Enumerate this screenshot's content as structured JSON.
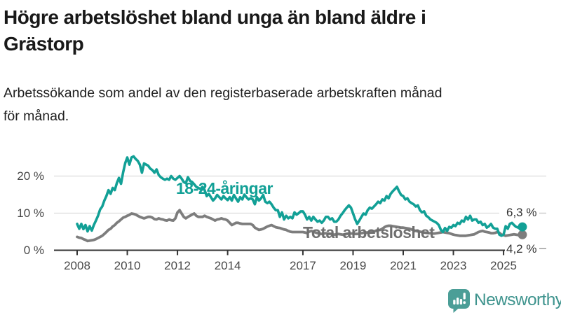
{
  "header": {
    "title": "Högre arbetslöshet bland unga än bland äldre i Grästorp",
    "title_line1": "Högre arbetslöshet bland unga än bland äldre i",
    "title_line2": "Grästorp",
    "subtitle": "Arbetssökande som andel av den registerbaserade arbetskraften månad för månad.",
    "subtitle_line1": "Arbetssökande som andel av den registerbaserade arbetskraften månad",
    "subtitle_line2": "för månad."
  },
  "chart_data": {
    "type": "line",
    "title": "Högre arbetslöshet bland unga än bland äldre i Grästorp",
    "subtitle": "Arbetssökande som andel av den registerbaserade arbetskraften månad för månad.",
    "unit": "%",
    "grid": true,
    "x_start_year": 2008,
    "points_per_year": 12,
    "x_ticks": [
      2008,
      2010,
      2012,
      2014,
      2017,
      2019,
      2021,
      2023,
      2025
    ],
    "y_ticks": [
      {
        "value": 0,
        "label": "0 %"
      },
      {
        "value": 10,
        "label": "10 %"
      },
      {
        "value": 20,
        "label": "20 %"
      }
    ],
    "ylim": [
      0,
      27
    ],
    "series": [
      {
        "name": "18-24-åringar",
        "color": "#12a096",
        "end_value": 6.3,
        "end_label": "6,3 %",
        "values": [
          7.1,
          5.8,
          7.1,
          5.7,
          6.8,
          5.1,
          6.5,
          5.3,
          6.8,
          8.0,
          9.3,
          11.0,
          11.8,
          13.4,
          14.6,
          16.2,
          15.2,
          16.8,
          16.2,
          18.1,
          19.5,
          17.9,
          21.0,
          23.5,
          25.0,
          23.1,
          25.0,
          25.3,
          24.6,
          24.1,
          23.1,
          20.9,
          23.4,
          23.1,
          22.8,
          22.0,
          21.6,
          20.9,
          21.8,
          20.3,
          19.7,
          19.3,
          19.0,
          19.3,
          19.0,
          20.0,
          19.3,
          19.0,
          19.5,
          20.0,
          19.3,
          18.4,
          18.1,
          19.7,
          18.7,
          18.4,
          17.8,
          17.1,
          16.8,
          16.5,
          17.1,
          16.2,
          14.6,
          15.2,
          14.3,
          13.4,
          14.0,
          14.9,
          14.3,
          13.7,
          14.6,
          14.0,
          13.5,
          14.3,
          13.4,
          14.9,
          14.0,
          13.1,
          14.3,
          13.7,
          15.0,
          14.3,
          13.7,
          14.0,
          13.7,
          12.4,
          14.3,
          13.4,
          14.0,
          14.9,
          13.1,
          12.7,
          13.1,
          12.4,
          11.5,
          10.8,
          10.8,
          9.0,
          10.2,
          8.3,
          9.3,
          8.6,
          9.0,
          8.6,
          10.2,
          9.6,
          10.0,
          10.5,
          10.5,
          9.6,
          8.3,
          9.0,
          8.0,
          9.0,
          8.3,
          7.7,
          8.0,
          7.4,
          8.0,
          9.0,
          9.0,
          8.3,
          8.6,
          7.7,
          7.7,
          8.3,
          9.3,
          10.0,
          10.8,
          11.5,
          12.1,
          11.5,
          9.9,
          8.3,
          7.1,
          8.0,
          9.0,
          9.9,
          9.6,
          10.8,
          11.5,
          11.2,
          11.8,
          12.4,
          13.1,
          12.7,
          13.7,
          13.4,
          14.6,
          14.0,
          15.2,
          15.9,
          16.5,
          17.1,
          15.9,
          14.9,
          14.6,
          13.7,
          14.0,
          13.1,
          12.7,
          12.4,
          11.8,
          12.1,
          10.8,
          10.2,
          10.5,
          9.3,
          8.9,
          8.3,
          8.0,
          7.7,
          7.4,
          6.8,
          5.5,
          4.9,
          6.0,
          5.2,
          6.3,
          6.1,
          6.8,
          6.5,
          7.4,
          7.1,
          8.0,
          7.7,
          9.0,
          8.3,
          9.3,
          8.0,
          8.3,
          8.3,
          7.4,
          7.7,
          6.8,
          7.1,
          6.1,
          6.5,
          7.1,
          6.1,
          5.8,
          5.8,
          4.2,
          3.9,
          4.2,
          6.5,
          5.8,
          7.1,
          7.4,
          6.8,
          6.3,
          6.1,
          5.8,
          6.3
        ]
      },
      {
        "name": "Total arbetslöshet",
        "color": "#7d7d7d",
        "end_value": 4.2,
        "end_label": "4,2 %",
        "values": [
          3.6,
          3.4,
          3.3,
          3.0,
          2.8,
          2.5,
          2.6,
          2.7,
          2.8,
          3.0,
          3.3,
          3.6,
          3.9,
          4.4,
          4.9,
          5.5,
          5.8,
          6.4,
          6.8,
          7.4,
          7.8,
          8.3,
          8.8,
          9.0,
          9.3,
          9.5,
          9.9,
          9.8,
          9.6,
          9.3,
          9.0,
          8.8,
          8.6,
          8.8,
          9.0,
          9.0,
          8.8,
          8.4,
          8.3,
          8.6,
          8.4,
          8.3,
          8.1,
          8.0,
          8.3,
          8.1,
          8.0,
          8.6,
          10.2,
          10.8,
          9.9,
          9.0,
          8.6,
          9.0,
          9.3,
          9.6,
          9.9,
          9.3,
          9.0,
          9.0,
          9.0,
          9.3,
          9.0,
          8.8,
          8.6,
          8.3,
          8.0,
          8.3,
          8.4,
          8.6,
          8.4,
          8.3,
          8.0,
          7.4,
          6.8,
          7.1,
          7.4,
          7.4,
          7.2,
          7.1,
          7.1,
          7.1,
          7.1,
          7.1,
          6.8,
          6.1,
          5.8,
          5.5,
          5.6,
          5.8,
          6.1,
          6.4,
          6.6,
          6.8,
          6.5,
          6.2,
          6.1,
          6.0,
          5.8,
          5.6,
          5.5,
          5.2,
          5.0,
          4.9,
          4.9,
          4.9,
          4.9,
          4.9,
          4.9,
          4.8,
          4.6,
          5.0,
          5.2,
          5.0,
          4.8,
          4.6,
          4.5,
          4.4,
          4.5,
          4.6,
          4.5,
          4.4,
          4.3,
          4.2,
          4.3,
          4.4,
          4.3,
          4.2,
          4.3,
          4.4,
          4.5,
          4.5,
          4.5,
          4.4,
          4.4,
          4.5,
          4.6,
          4.7,
          4.8,
          4.8,
          4.9,
          5.0,
          5.1,
          5.2,
          5.4,
          5.5,
          5.8,
          6.2,
          6.5,
          6.6,
          6.6,
          6.5,
          6.4,
          6.3,
          6.2,
          6.1,
          6.1,
          6.0,
          5.9,
          5.8,
          5.6,
          5.4,
          5.2,
          5.1,
          5.0,
          4.9,
          4.8,
          4.7,
          4.6,
          4.6,
          4.5,
          4.5,
          4.6,
          4.7,
          4.8,
          4.9,
          4.8,
          4.7,
          4.6,
          4.4,
          4.2,
          4.1,
          4.0,
          3.9,
          3.9,
          3.9,
          3.9,
          4.0,
          4.1,
          4.2,
          4.3,
          4.6,
          4.9,
          5.1,
          5.2,
          5.0,
          4.9,
          4.8,
          4.6,
          4.6,
          4.7,
          4.9,
          4.7,
          4.2,
          4.1,
          3.9,
          4.0,
          4.1,
          4.2,
          4.3,
          4.2,
          4.1,
          4.1,
          4.2
        ]
      }
    ],
    "colors": {
      "accent_teal": "#12a096",
      "line_gray": "#7d7d7d",
      "gridline": "#dcdcdc",
      "axis": "#333333",
      "tick_text": "#484848"
    }
  },
  "footer": {
    "brand": "Newsworthy",
    "brand_color": "#3f948e",
    "icon": "newsworthy-chart-bubble-icon"
  }
}
